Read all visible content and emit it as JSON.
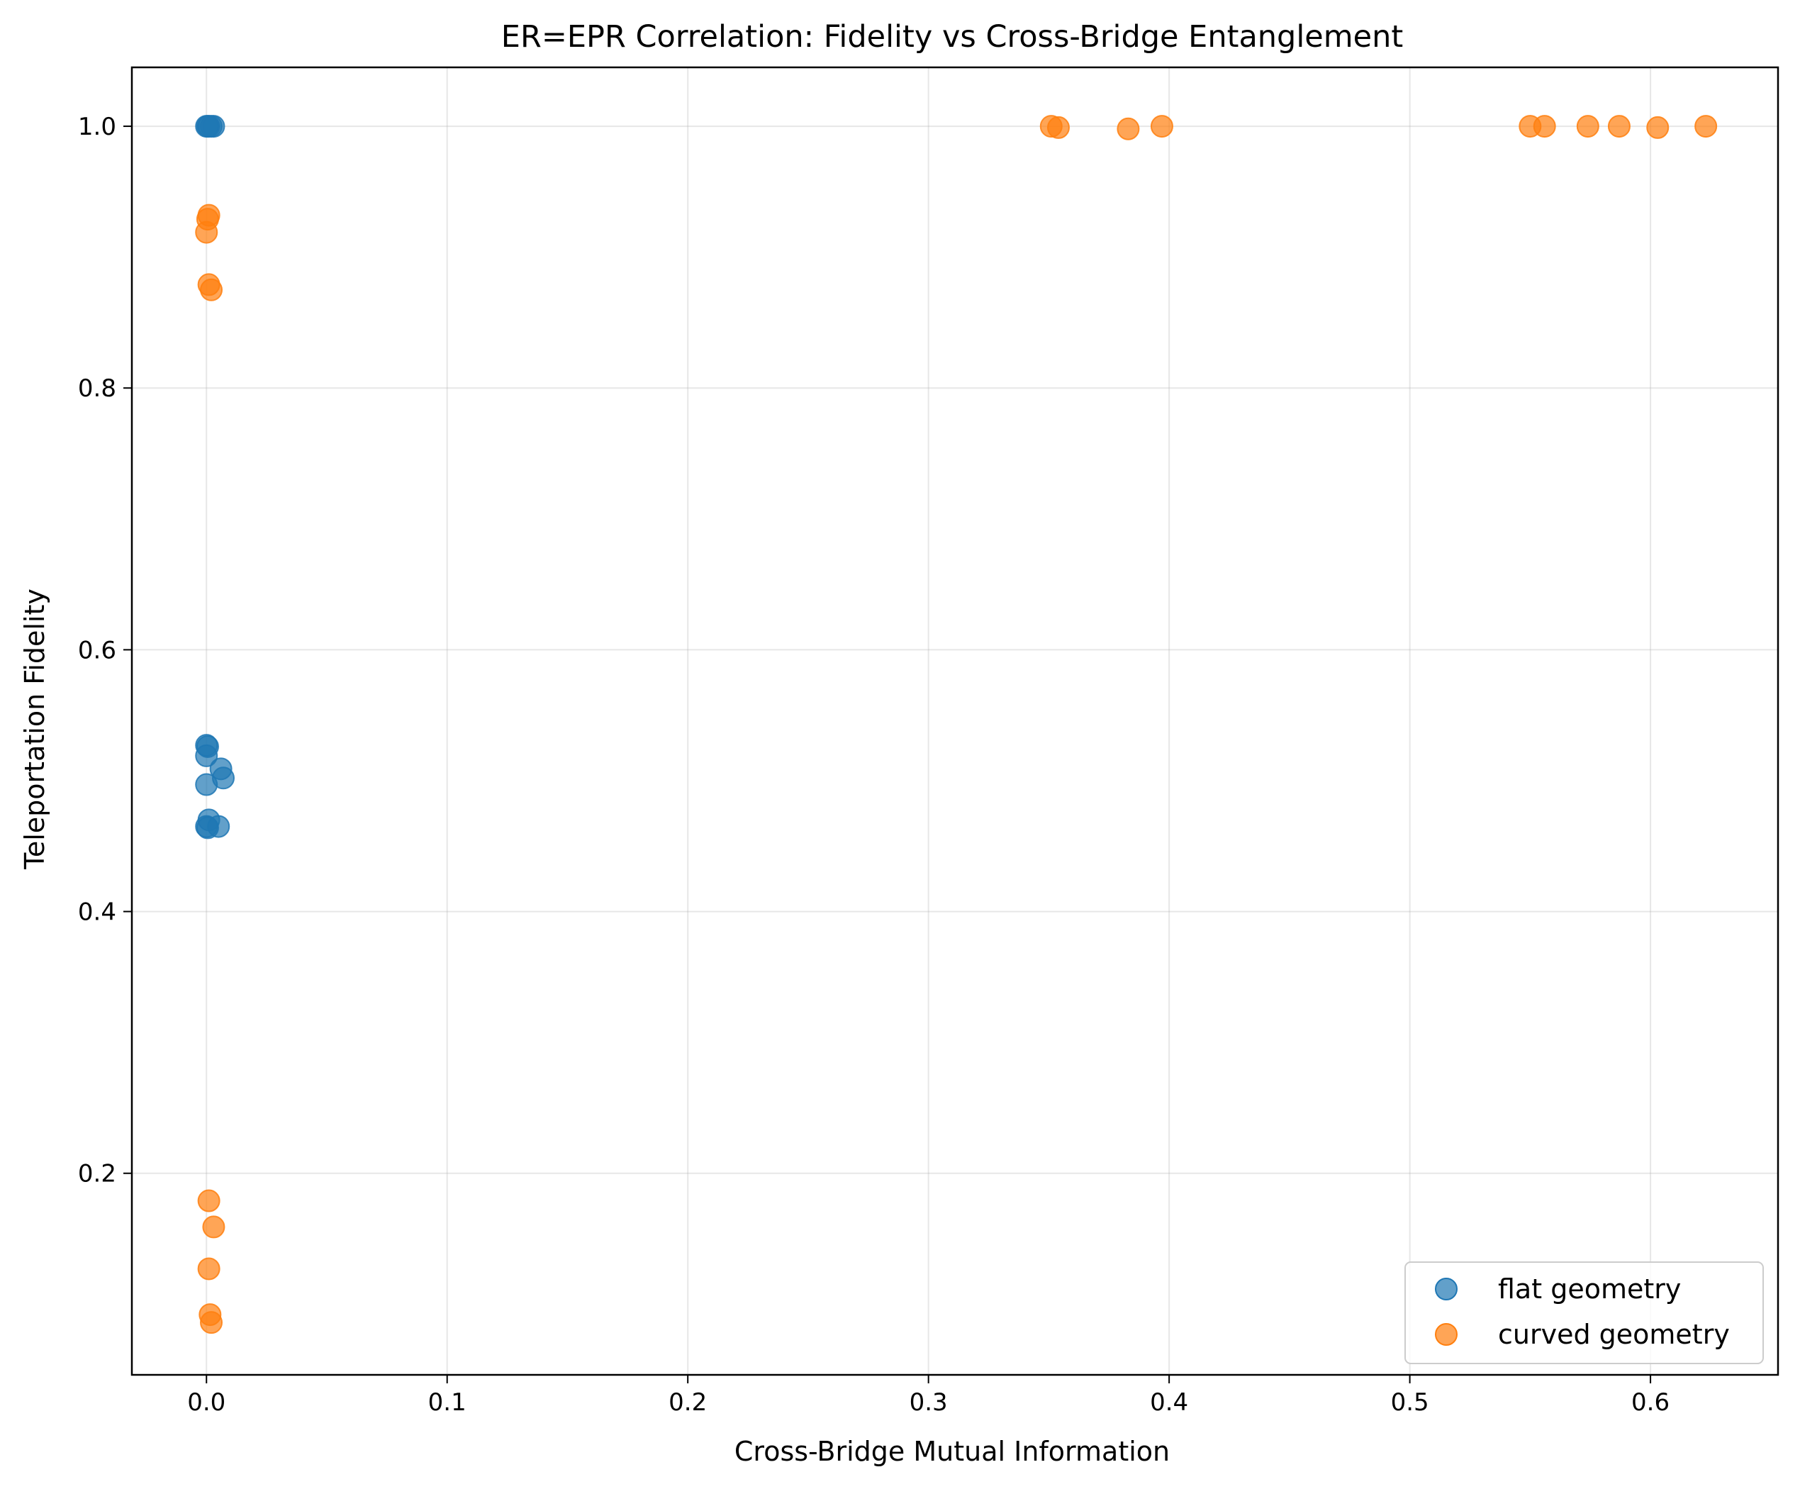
{
  "chart_data": {
    "type": "scatter",
    "title": "ER=EPR Correlation: Fidelity vs Cross-Bridge Entanglement",
    "xlabel": "Cross-Bridge Mutual Information",
    "ylabel": "Teleportation Fidelity",
    "xlim": [
      -0.031,
      0.653
    ],
    "ylim": [
      0.046,
      1.045
    ],
    "xticks": [
      0.0,
      0.1,
      0.2,
      0.3,
      0.4,
      0.5,
      0.6
    ],
    "xtick_labels": [
      "0.0",
      "0.1",
      "0.2",
      "0.3",
      "0.4",
      "0.5",
      "0.6"
    ],
    "yticks": [
      0.2,
      0.4,
      0.6,
      0.8,
      1.0
    ],
    "ytick_labels": [
      "0.2",
      "0.4",
      "0.6",
      "0.8",
      "1.0"
    ],
    "grid": true,
    "legend_position": "bottom-right",
    "series": [
      {
        "name": "flat geometry",
        "color": "#1f77b4",
        "points": [
          {
            "x": 0.0,
            "y": 1.0
          },
          {
            "x": 0.001,
            "y": 1.0
          },
          {
            "x": 0.002,
            "y": 1.0
          },
          {
            "x": 0.003,
            "y": 1.0
          },
          {
            "x": 0.0005,
            "y": 1.0
          },
          {
            "x": 0.0,
            "y": 0.527
          },
          {
            "x": 0.0005,
            "y": 0.526
          },
          {
            "x": 0.0,
            "y": 0.519
          },
          {
            "x": 0.006,
            "y": 0.509
          },
          {
            "x": 0.007,
            "y": 0.502
          },
          {
            "x": 0.0,
            "y": 0.497
          },
          {
            "x": 0.001,
            "y": 0.47
          },
          {
            "x": 0.0,
            "y": 0.465
          },
          {
            "x": 0.005,
            "y": 0.465
          },
          {
            "x": 0.0005,
            "y": 0.464
          }
        ]
      },
      {
        "name": "curved geometry",
        "color": "#ff7f0e",
        "points": [
          {
            "x": 0.351,
            "y": 1.0
          },
          {
            "x": 0.354,
            "y": 0.999
          },
          {
            "x": 0.383,
            "y": 0.998
          },
          {
            "x": 0.397,
            "y": 1.0
          },
          {
            "x": 0.55,
            "y": 1.0
          },
          {
            "x": 0.556,
            "y": 1.0
          },
          {
            "x": 0.574,
            "y": 1.0
          },
          {
            "x": 0.587,
            "y": 1.0
          },
          {
            "x": 0.603,
            "y": 0.999
          },
          {
            "x": 0.623,
            "y": 1.0
          },
          {
            "x": 0.001,
            "y": 0.932
          },
          {
            "x": 0.0005,
            "y": 0.929
          },
          {
            "x": 0.0,
            "y": 0.919
          },
          {
            "x": 0.001,
            "y": 0.879
          },
          {
            "x": 0.002,
            "y": 0.875
          },
          {
            "x": 0.001,
            "y": 0.179
          },
          {
            "x": 0.003,
            "y": 0.159
          },
          {
            "x": 0.001,
            "y": 0.127
          },
          {
            "x": 0.0015,
            "y": 0.092
          },
          {
            "x": 0.002,
            "y": 0.086
          }
        ]
      }
    ]
  }
}
